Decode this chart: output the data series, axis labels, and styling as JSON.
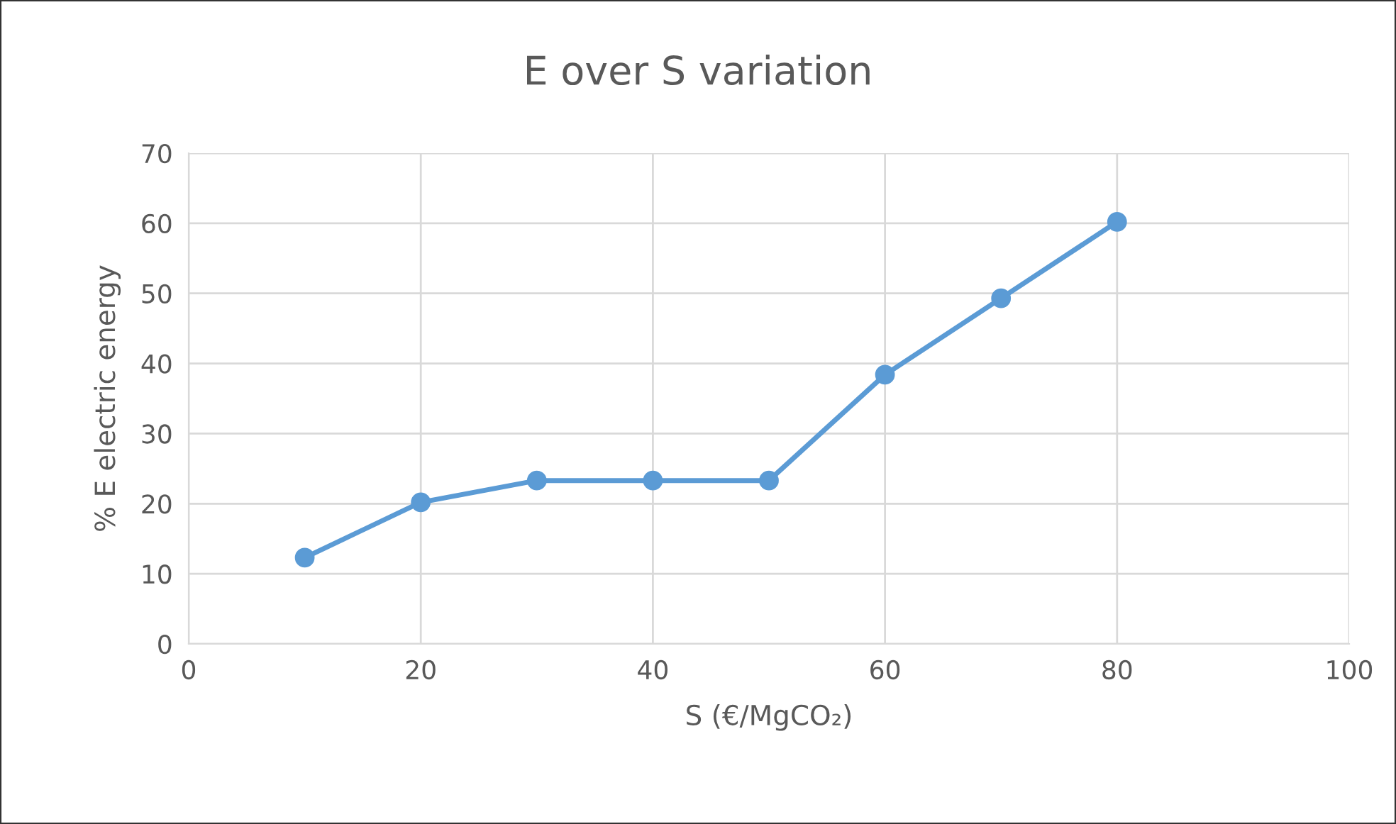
{
  "chart_data": {
    "type": "line",
    "title": "E over S variation",
    "xlabel": "S (€/MgCO₂)",
    "ylabel": "% E electric energy",
    "x": [
      10,
      20,
      30,
      40,
      50,
      60,
      70,
      80
    ],
    "series": [
      {
        "color": "#5b9bd5",
        "values": [
          12.3,
          20.2,
          23.3,
          23.3,
          23.3,
          38.4,
          49.3,
          60.2
        ]
      }
    ],
    "xlim": [
      0,
      100
    ],
    "xticks": [
      0,
      20,
      40,
      60,
      80,
      100
    ],
    "ylim": [
      0,
      70
    ],
    "yticks": [
      0,
      10,
      20,
      30,
      40,
      50,
      60,
      70
    ],
    "grid": true,
    "marker": "circle",
    "line_style": "solid",
    "legend": false
  }
}
